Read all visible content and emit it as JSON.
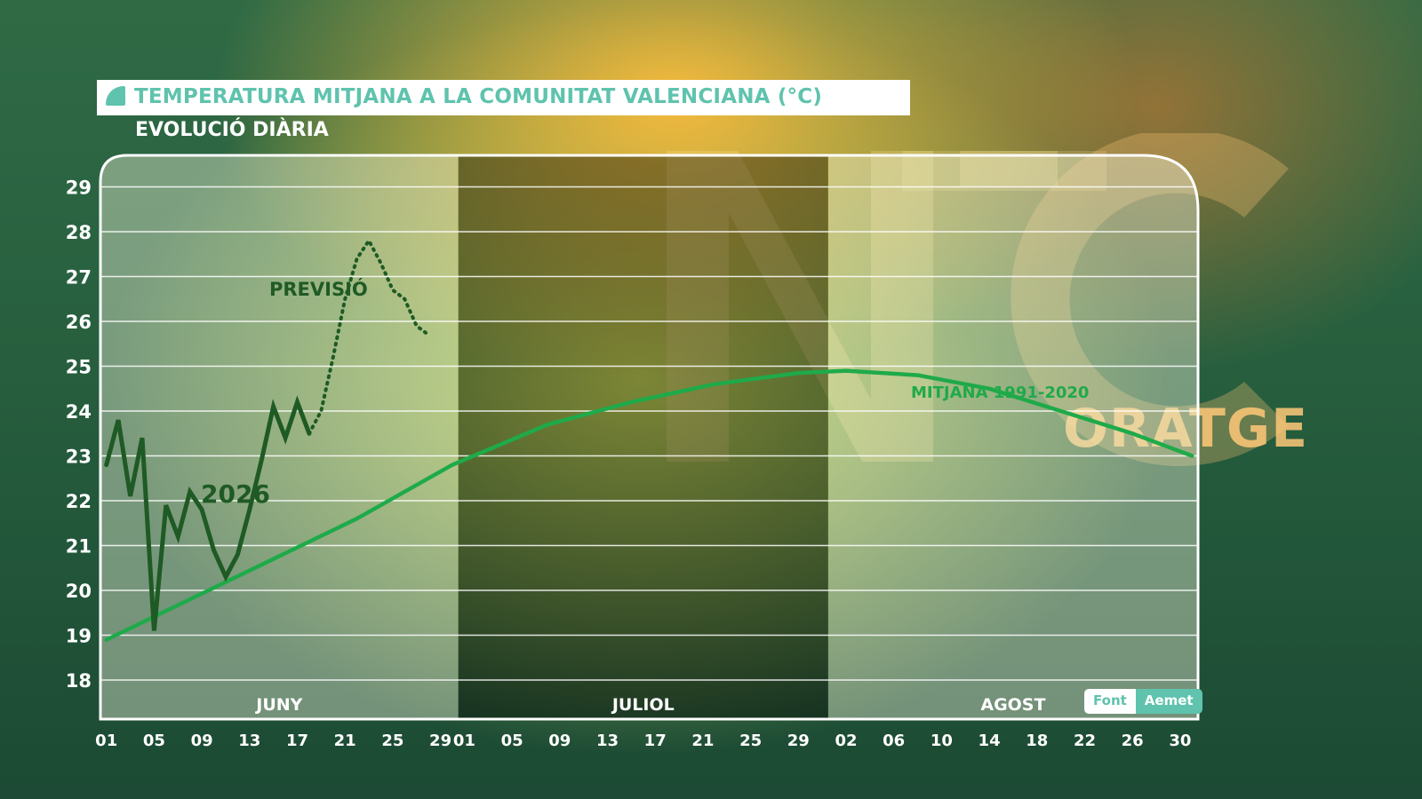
{
  "header": {
    "title": "TEMPERATURA MITJANA A LA COMUNITAT VALENCIANA (°C)",
    "subtitle": "EVOLUCIÓ DIÀRIA"
  },
  "source": {
    "label": "Font",
    "value": "Aemet"
  },
  "branding": {
    "logo_text": "ORATGE"
  },
  "colors": {
    "series_2026": "#1f5a25",
    "series_normal": "#1faa4a",
    "accent": "#5fc3ad",
    "month_label": "#ffffff"
  },
  "chart_data": {
    "type": "line",
    "ylim": [
      18,
      29
    ],
    "yticks": [
      "18",
      "19",
      "20",
      "21",
      "22",
      "23",
      "24",
      "25",
      "26",
      "27",
      "28",
      "29"
    ],
    "months": [
      {
        "name": "JUNY",
        "days": 30,
        "shade": "light"
      },
      {
        "name": "JULIOL",
        "days": 31,
        "shade": "dark"
      },
      {
        "name": "AGOST",
        "days": 31,
        "shade": "light"
      }
    ],
    "xticks": [
      {
        "label": "01",
        "month": 0,
        "day": 1
      },
      {
        "label": "05",
        "month": 0,
        "day": 5
      },
      {
        "label": "09",
        "month": 0,
        "day": 9
      },
      {
        "label": "13",
        "month": 0,
        "day": 13
      },
      {
        "label": "17",
        "month": 0,
        "day": 17
      },
      {
        "label": "21",
        "month": 0,
        "day": 21
      },
      {
        "label": "25",
        "month": 0,
        "day": 25
      },
      {
        "label": "29",
        "month": 0,
        "day": 29
      },
      {
        "label": "01",
        "month": 1,
        "day": 1
      },
      {
        "label": "05",
        "month": 1,
        "day": 5
      },
      {
        "label": "09",
        "month": 1,
        "day": 9
      },
      {
        "label": "13",
        "month": 1,
        "day": 13
      },
      {
        "label": "17",
        "month": 1,
        "day": 17
      },
      {
        "label": "21",
        "month": 1,
        "day": 21
      },
      {
        "label": "25",
        "month": 1,
        "day": 25
      },
      {
        "label": "29",
        "month": 1,
        "day": 29
      },
      {
        "label": "02",
        "month": 2,
        "day": 2
      },
      {
        "label": "06",
        "month": 2,
        "day": 6
      },
      {
        "label": "10",
        "month": 2,
        "day": 10
      },
      {
        "label": "14",
        "month": 2,
        "day": 14
      },
      {
        "label": "18",
        "month": 2,
        "day": 18
      },
      {
        "label": "22",
        "month": 2,
        "day": 22
      },
      {
        "label": "26",
        "month": 2,
        "day": 26
      },
      {
        "label": "30",
        "month": 2,
        "day": 30
      }
    ],
    "series": [
      {
        "name": "2026",
        "style": "solid",
        "points": [
          [
            "06-01",
            22.8
          ],
          [
            "06-02",
            23.8
          ],
          [
            "06-03",
            22.1
          ],
          [
            "06-04",
            23.4
          ],
          [
            "06-05",
            19.1
          ],
          [
            "06-06",
            21.9
          ],
          [
            "06-07",
            21.2
          ],
          [
            "06-08",
            22.2
          ],
          [
            "06-09",
            21.8
          ],
          [
            "06-10",
            20.9
          ],
          [
            "06-11",
            20.3
          ],
          [
            "06-12",
            20.8
          ],
          [
            "06-13",
            21.8
          ],
          [
            "06-14",
            22.9
          ],
          [
            "06-15",
            24.1
          ],
          [
            "06-16",
            23.4
          ],
          [
            "06-17",
            24.2
          ],
          [
            "06-18",
            23.5
          ]
        ]
      },
      {
        "name": "PREVISIÓ",
        "style": "dotted",
        "points": [
          [
            "06-18",
            23.5
          ],
          [
            "06-19",
            24.0
          ],
          [
            "06-20",
            25.2
          ],
          [
            "06-21",
            26.5
          ],
          [
            "06-22",
            27.4
          ],
          [
            "06-23",
            27.8
          ],
          [
            "06-24",
            27.3
          ],
          [
            "06-25",
            26.7
          ],
          [
            "06-26",
            26.5
          ],
          [
            "06-27",
            25.9
          ],
          [
            "06-28",
            25.7
          ]
        ]
      },
      {
        "name": "MITJANA 1991-2020",
        "style": "solid",
        "points": [
          [
            "06-01",
            18.9
          ],
          [
            "06-08",
            19.8
          ],
          [
            "06-15",
            20.7
          ],
          [
            "06-22",
            21.6
          ],
          [
            "06-30",
            22.8
          ],
          [
            "07-08",
            23.7
          ],
          [
            "07-15",
            24.2
          ],
          [
            "07-22",
            24.6
          ],
          [
            "07-29",
            24.85
          ],
          [
            "08-02",
            24.9
          ],
          [
            "08-08",
            24.8
          ],
          [
            "08-14",
            24.5
          ],
          [
            "08-20",
            24.0
          ],
          [
            "08-26",
            23.5
          ],
          [
            "08-31",
            23.0
          ]
        ]
      }
    ]
  }
}
